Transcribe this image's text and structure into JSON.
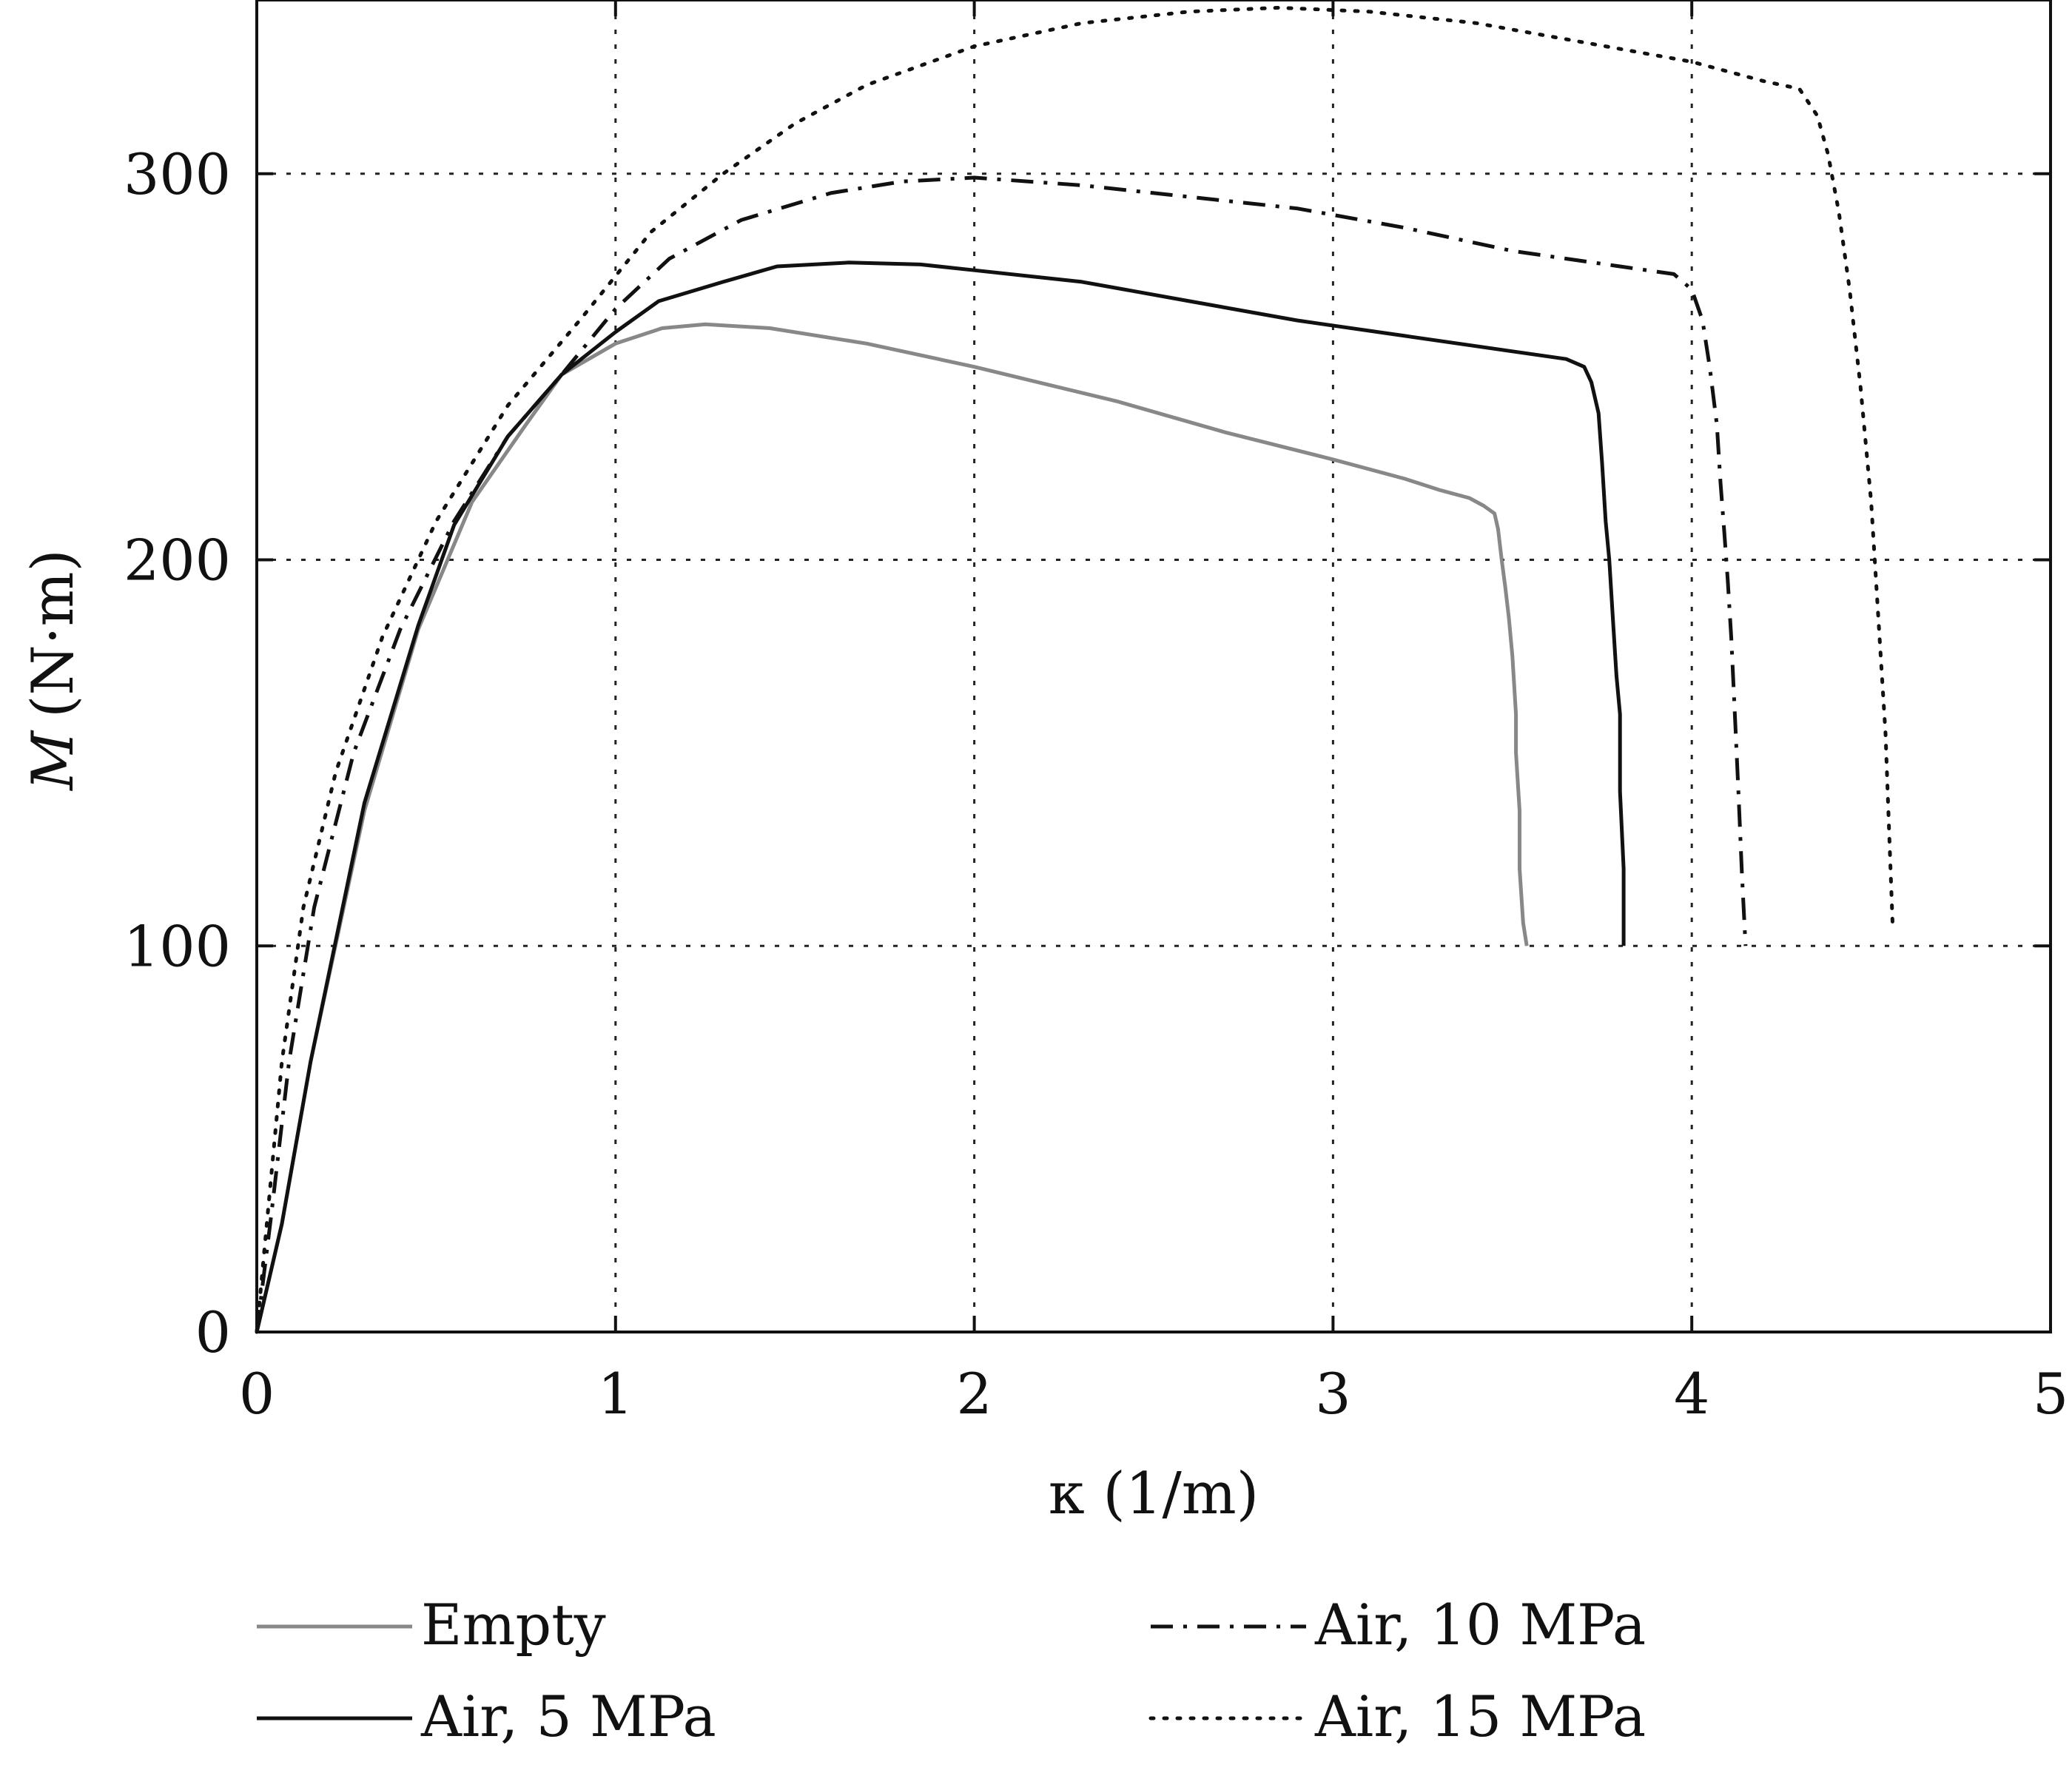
{
  "chart_data": {
    "type": "line",
    "title": "",
    "xlabel": "κ (1/m)",
    "ylabel": "M (N·m)",
    "ylabel_symbol": "M",
    "ylabel_unit": "(N·m)",
    "xlim": [
      0,
      5
    ],
    "ylim": [
      0,
      345
    ],
    "xticks": [
      "0",
      "1",
      "2",
      "3",
      "4",
      "5"
    ],
    "yticks": [
      "0",
      "100",
      "200",
      "300"
    ],
    "xtick_values": [
      0,
      1,
      2,
      3,
      4,
      5
    ],
    "ytick_values": [
      0,
      100,
      200,
      300
    ],
    "grid": true,
    "legend_position": "bottom",
    "series": [
      {
        "name": "Empty",
        "color": "#888888",
        "style": "solid",
        "points": [
          [
            0,
            0
          ],
          [
            0.07,
            28
          ],
          [
            0.15,
            70
          ],
          [
            0.3,
            135
          ],
          [
            0.45,
            182
          ],
          [
            0.6,
            215
          ],
          [
            0.75,
            235
          ],
          [
            0.85,
            248
          ],
          [
            1.0,
            256
          ],
          [
            1.13,
            260
          ],
          [
            1.25,
            261
          ],
          [
            1.43,
            260
          ],
          [
            1.7,
            256
          ],
          [
            2.0,
            250
          ],
          [
            2.4,
            241
          ],
          [
            2.7,
            233
          ],
          [
            3.0,
            226
          ],
          [
            3.2,
            221
          ],
          [
            3.3,
            218
          ],
          [
            3.38,
            216
          ],
          [
            3.42,
            214
          ],
          [
            3.45,
            212
          ],
          [
            3.46,
            208
          ],
          [
            3.47,
            200
          ],
          [
            3.48,
            193
          ],
          [
            3.49,
            185
          ],
          [
            3.5,
            175
          ],
          [
            3.51,
            160
          ],
          [
            3.51,
            150
          ],
          [
            3.52,
            135
          ],
          [
            3.52,
            120
          ],
          [
            3.53,
            106
          ],
          [
            3.54,
            100
          ]
        ]
      },
      {
        "name": "Air, 5 MPa",
        "color": "#111111",
        "style": "solid",
        "points": [
          [
            0,
            0
          ],
          [
            0.07,
            28
          ],
          [
            0.15,
            70
          ],
          [
            0.3,
            137
          ],
          [
            0.45,
            183
          ],
          [
            0.55,
            209
          ],
          [
            0.7,
            232
          ],
          [
            0.85,
            248
          ],
          [
            1.0,
            259
          ],
          [
            1.12,
            267
          ],
          [
            1.3,
            272
          ],
          [
            1.45,
            276
          ],
          [
            1.65,
            277
          ],
          [
            1.85,
            276.5
          ],
          [
            2.0,
            275
          ],
          [
            2.3,
            272
          ],
          [
            2.6,
            267
          ],
          [
            2.9,
            262
          ],
          [
            3.2,
            258
          ],
          [
            3.5,
            254
          ],
          [
            3.65,
            252
          ],
          [
            3.7,
            250
          ],
          [
            3.72,
            246
          ],
          [
            3.74,
            238
          ],
          [
            3.75,
            225
          ],
          [
            3.76,
            210
          ],
          [
            3.77,
            200
          ],
          [
            3.78,
            185
          ],
          [
            3.79,
            170
          ],
          [
            3.8,
            160
          ],
          [
            3.8,
            140
          ],
          [
            3.81,
            120
          ],
          [
            3.81,
            100
          ]
        ]
      },
      {
        "name": "Air, 10 MPa",
        "color": "#111111",
        "style": "dashdot",
        "points": [
          [
            0,
            0
          ],
          [
            0.04,
            30
          ],
          [
            0.09,
            70
          ],
          [
            0.16,
            110
          ],
          [
            0.27,
            150
          ],
          [
            0.4,
            182
          ],
          [
            0.55,
            210
          ],
          [
            0.7,
            232
          ],
          [
            0.85,
            248
          ],
          [
            1.0,
            265
          ],
          [
            1.15,
            278
          ],
          [
            1.35,
            288
          ],
          [
            1.6,
            295
          ],
          [
            1.8,
            298
          ],
          [
            2.0,
            299
          ],
          [
            2.3,
            297
          ],
          [
            2.6,
            294
          ],
          [
            2.9,
            291
          ],
          [
            3.2,
            286
          ],
          [
            3.5,
            280
          ],
          [
            3.8,
            276
          ],
          [
            3.95,
            274
          ],
          [
            4.0,
            270
          ],
          [
            4.03,
            262
          ],
          [
            4.05,
            250
          ],
          [
            4.07,
            235
          ],
          [
            4.08,
            220
          ],
          [
            4.09,
            208
          ],
          [
            4.1,
            195
          ],
          [
            4.11,
            180
          ],
          [
            4.12,
            160
          ],
          [
            4.13,
            140
          ],
          [
            4.14,
            118
          ],
          [
            4.15,
            100
          ]
        ]
      },
      {
        "name": "Air, 15 MPa",
        "color": "#111111",
        "style": "dotted",
        "points": [
          [
            0,
            0
          ],
          [
            0.03,
            30
          ],
          [
            0.07,
            70
          ],
          [
            0.13,
            110
          ],
          [
            0.22,
            145
          ],
          [
            0.35,
            180
          ],
          [
            0.5,
            210
          ],
          [
            0.7,
            240
          ],
          [
            0.9,
            262
          ],
          [
            1.1,
            285
          ],
          [
            1.3,
            300
          ],
          [
            1.5,
            313
          ],
          [
            1.7,
            323
          ],
          [
            2.0,
            333
          ],
          [
            2.3,
            339
          ],
          [
            2.6,
            342
          ],
          [
            2.85,
            343
          ],
          [
            3.1,
            342
          ],
          [
            3.4,
            339
          ],
          [
            3.7,
            334
          ],
          [
            4.0,
            329
          ],
          [
            4.2,
            324
          ],
          [
            4.3,
            322
          ],
          [
            4.35,
            315
          ],
          [
            4.38,
            305
          ],
          [
            4.41,
            290
          ],
          [
            4.44,
            270
          ],
          [
            4.47,
            245
          ],
          [
            4.5,
            215
          ],
          [
            4.52,
            185
          ],
          [
            4.54,
            155
          ],
          [
            4.55,
            130
          ],
          [
            4.56,
            105
          ]
        ]
      }
    ]
  }
}
